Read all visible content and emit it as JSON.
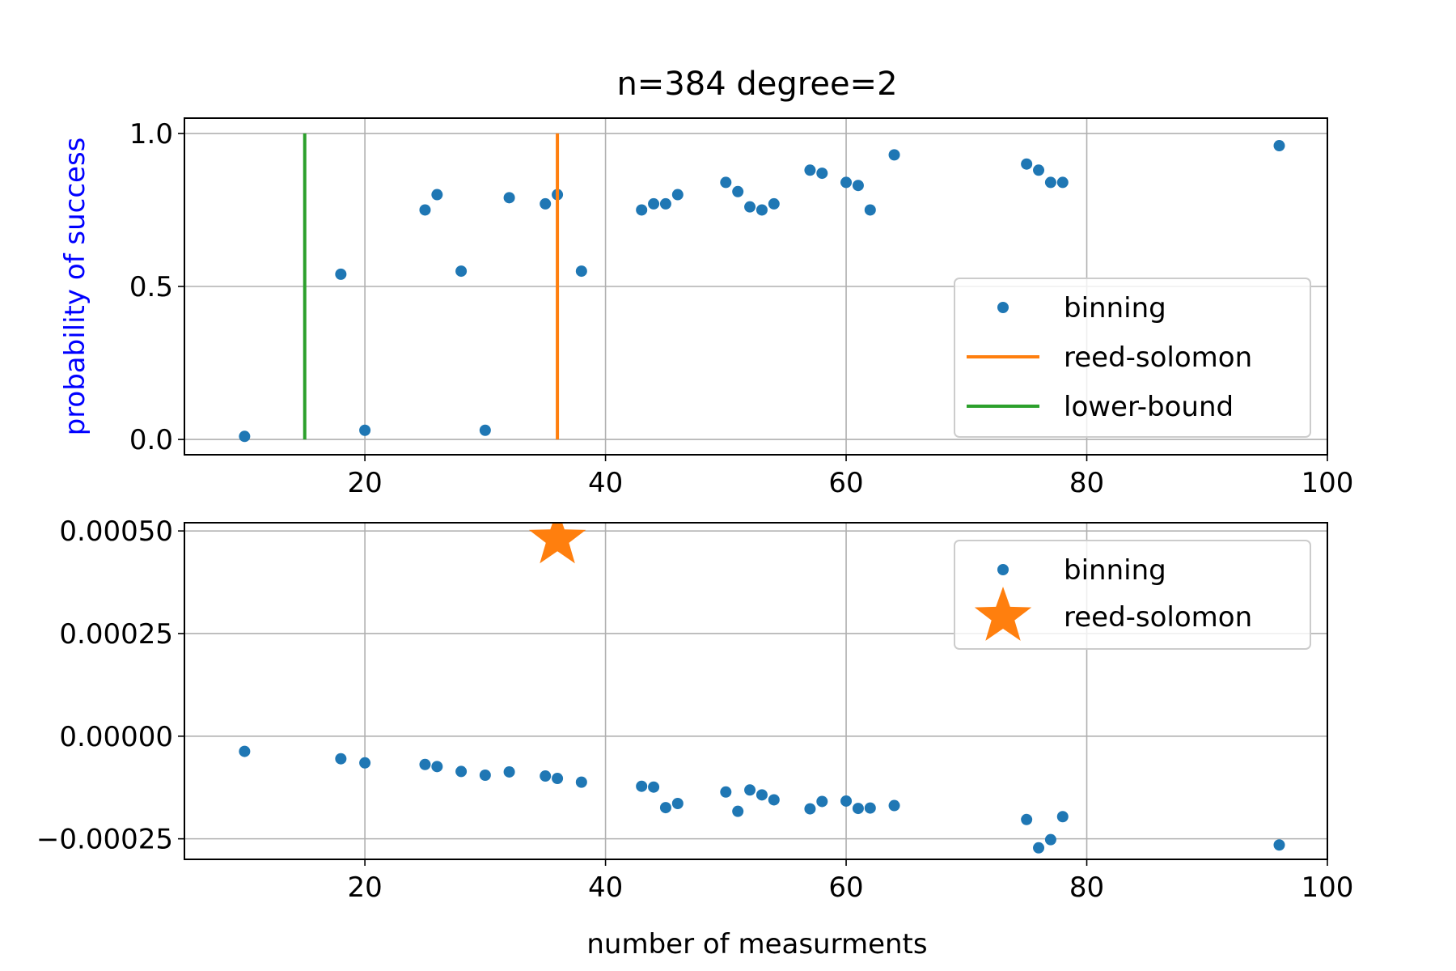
{
  "figure": {
    "title": "n=384 degree=2"
  },
  "chart_data": [
    {
      "type": "scatter",
      "title": "n=384 degree=2",
      "xlabel": "",
      "ylabel": "probability of success",
      "ylabel_color": "#0000ff",
      "xlim": [
        5,
        100
      ],
      "ylim": [
        -0.05,
        1.05
      ],
      "x_ticks": [
        20,
        40,
        60,
        80,
        100
      ],
      "x_tick_labels": [
        "20",
        "40",
        "60",
        "80",
        "100"
      ],
      "y_ticks": [
        0.0,
        0.5,
        1.0
      ],
      "y_tick_labels": [
        "0.0",
        "0.5",
        "1.0"
      ],
      "grid": true,
      "legend_position": "lower-right",
      "series": [
        {
          "name": "binning",
          "kind": "points",
          "color": "#1f77b4",
          "x": [
            10,
            18,
            20,
            25,
            26,
            28,
            30,
            32,
            35,
            36,
            38,
            43,
            44,
            45,
            46,
            50,
            51,
            52,
            53,
            54,
            57,
            58,
            60,
            61,
            62,
            64,
            75,
            76,
            77,
            78,
            96
          ],
          "y": [
            0.01,
            0.54,
            0.03,
            0.75,
            0.8,
            0.55,
            0.03,
            0.79,
            0.77,
            0.8,
            0.55,
            0.75,
            0.77,
            0.77,
            0.8,
            0.84,
            0.81,
            0.76,
            0.75,
            0.77,
            0.88,
            0.87,
            0.84,
            0.83,
            0.75,
            0.93,
            0.9,
            0.88,
            0.84,
            0.84,
            0.96
          ]
        },
        {
          "name": "reed-solomon",
          "kind": "vline",
          "color": "#ff7f0e",
          "x": 36,
          "y_range": [
            0,
            1
          ]
        },
        {
          "name": "lower-bound",
          "kind": "vline",
          "color": "#2ca02c",
          "x": 15,
          "y_range": [
            0,
            1
          ]
        }
      ]
    },
    {
      "type": "scatter",
      "title": "",
      "xlabel": "number of measurments",
      "ylabel": "",
      "xlim": [
        5,
        100
      ],
      "ylim": [
        -0.0003,
        0.00052
      ],
      "x_ticks": [
        20,
        40,
        60,
        80,
        100
      ],
      "x_tick_labels": [
        "20",
        "40",
        "60",
        "80",
        "100"
      ],
      "y_ticks": [
        -0.00025,
        0.0,
        0.00025,
        0.0005
      ],
      "y_tick_labels": [
        "−0.00025",
        "0.00000",
        "0.00025",
        "0.00050"
      ],
      "grid": true,
      "legend_position": "upper-right",
      "series": [
        {
          "name": "binning",
          "kind": "points",
          "color": "#1f77b4",
          "x": [
            10,
            18,
            20,
            25,
            26,
            28,
            30,
            32,
            35,
            36,
            38,
            43,
            44,
            45,
            46,
            50,
            51,
            52,
            53,
            54,
            57,
            58,
            60,
            61,
            62,
            64,
            75,
            76,
            77,
            78,
            96
          ],
          "y": [
            -3.7e-05,
            -5.5e-05,
            -6.5e-05,
            -6.9e-05,
            -7.4e-05,
            -8.6e-05,
            -9.5e-05,
            -8.7e-05,
            -9.7e-05,
            -0.000103,
            -0.000112,
            -0.000122,
            -0.000124,
            -0.000174,
            -0.000164,
            -0.000136,
            -0.000183,
            -0.000131,
            -0.000143,
            -0.000155,
            -0.000177,
            -0.000159,
            -0.000158,
            -0.000176,
            -0.000175,
            -0.000169,
            -0.000203,
            -0.000272,
            -0.000252,
            -0.000196,
            -0.000265
          ]
        },
        {
          "name": "reed-solomon",
          "kind": "star",
          "color": "#ff7f0e",
          "x": [
            36
          ],
          "y": [
            0.00048
          ]
        }
      ]
    }
  ]
}
